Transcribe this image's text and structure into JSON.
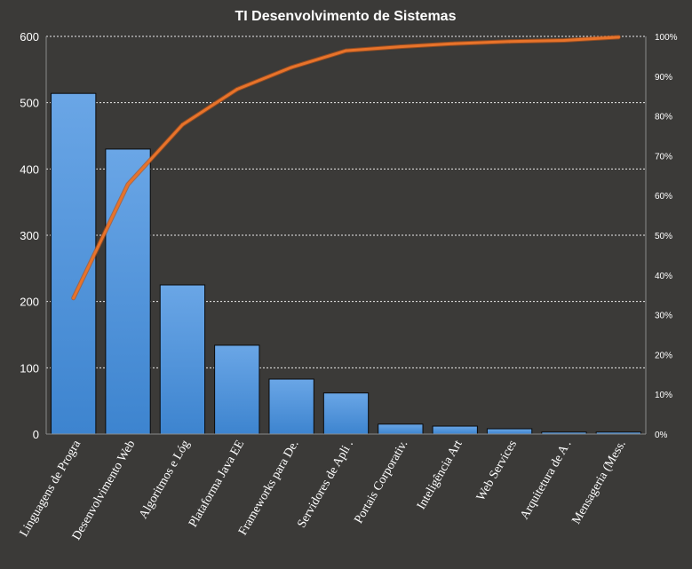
{
  "chart_data": {
    "type": "bar",
    "title": "TI Desenvolvimento  de Sistemas",
    "categories": [
      "Linguagens de Progra",
      "Desenvolvimento Web",
      "Algoritmos e Lóg",
      "Plataforma Java EE",
      "Frameworks para De.",
      "Servidores de Apli .",
      "Portais Corporativ.",
      "Inteligência Art",
      "Web Services",
      "Arquitetura de A .",
      "Mensageria (Mess."
    ],
    "series": [
      {
        "type": "bar",
        "values": [
          514,
          430,
          225,
          134,
          83,
          62,
          15,
          12,
          8,
          3,
          3
        ],
        "color": "#4a8fd6"
      },
      {
        "type": "line",
        "axis": "right",
        "values": [
          34.2,
          62.8,
          77.8,
          86.7,
          92.2,
          96.4,
          97.4,
          98.2,
          98.7,
          99.0,
          99.8
        ],
        "color": "#e8732a"
      }
    ],
    "y_ticks": [
      "0",
      "100",
      "200",
      "300",
      "400",
      "500",
      "600"
    ],
    "y2_ticks": [
      "0%",
      "10%",
      "20%",
      "30%",
      "40%",
      "50%",
      "60%",
      "70%",
      "80%",
      "90%",
      "100%"
    ],
    "ylim": [
      0,
      600
    ],
    "y2lim": [
      0,
      100
    ],
    "grid": true,
    "legend": "none"
  }
}
